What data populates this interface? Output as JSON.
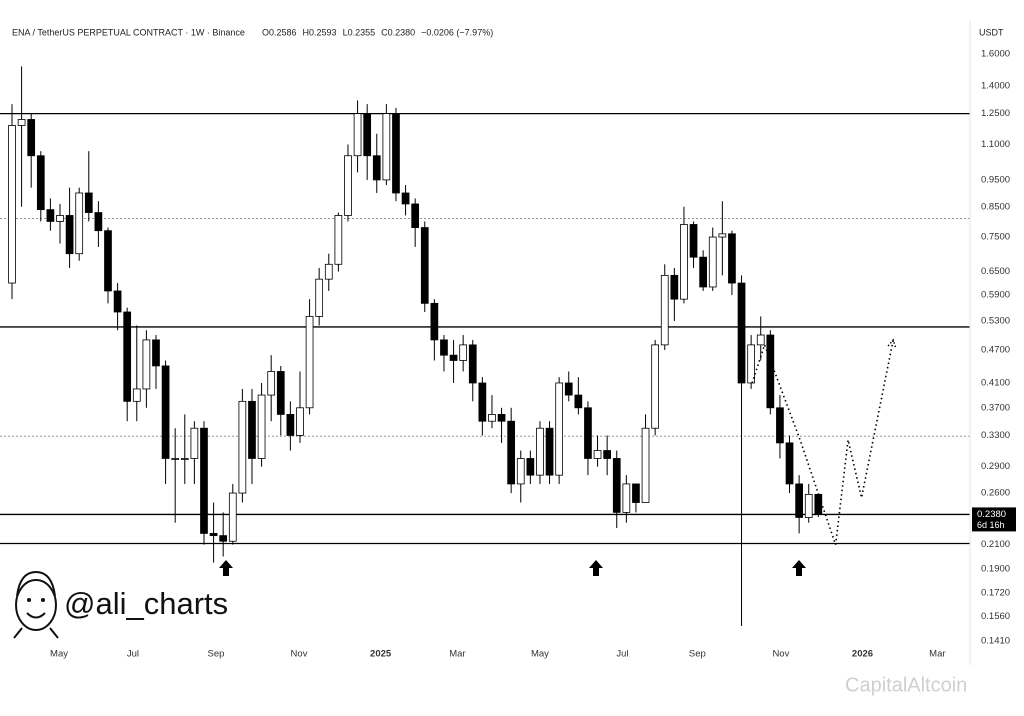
{
  "chart_data": {
    "type": "candlestick",
    "title": "ENA / TetherUS PERPETUAL CONTRACT · 1W · Binance",
    "header_values": [
      "O0.2586",
      "H0.2593",
      "L0.2355",
      "C0.2380",
      "−0.0206 (−7.97%)"
    ],
    "y_axis_label": "USDT",
    "log_scale": true,
    "grid": false,
    "up_color": "#ffffff",
    "down_color": "#000000",
    "open": [
      0.62,
      1.19,
      1.22,
      1.05,
      0.84,
      0.8,
      0.82,
      0.7,
      0.9,
      0.83,
      0.77,
      0.6,
      0.55,
      0.38,
      0.4,
      0.49,
      0.44,
      0.3,
      0.3,
      0.3,
      0.34,
      0.22,
      0.218,
      0.213,
      0.26,
      0.38,
      0.3,
      0.39,
      0.43,
      0.36,
      0.33,
      0.37,
      0.54,
      0.63,
      0.67,
      0.82,
      1.05,
      1.25,
      1.05,
      0.95,
      1.25,
      0.9,
      0.86,
      0.78,
      0.57,
      0.49,
      0.46,
      0.45,
      0.48,
      0.41,
      0.35,
      0.36,
      0.35,
      0.27,
      0.3,
      0.28,
      0.34,
      0.28,
      0.41,
      0.39,
      0.37,
      0.3,
      0.31,
      0.3,
      0.24,
      0.27,
      0.25,
      0.34,
      0.48,
      0.64,
      0.58,
      0.79,
      0.69,
      0.61,
      0.75,
      0.76,
      0.62,
      0.41,
      0.48,
      0.5,
      0.37,
      0.32,
      0.27,
      0.235,
      0.2586
    ],
    "high": [
      1.3,
      1.52,
      1.25,
      1.07,
      0.88,
      0.86,
      0.92,
      0.92,
      1.07,
      0.87,
      0.78,
      0.62,
      0.56,
      0.52,
      0.51,
      0.5,
      0.45,
      0.34,
      0.36,
      0.35,
      0.35,
      0.25,
      0.24,
      0.27,
      0.4,
      0.4,
      0.41,
      0.46,
      0.44,
      0.38,
      0.43,
      0.58,
      0.66,
      0.7,
      0.83,
      1.1,
      1.32,
      1.3,
      1.15,
      1.3,
      1.28,
      0.93,
      0.88,
      0.8,
      0.58,
      0.5,
      0.49,
      0.5,
      0.49,
      0.42,
      0.39,
      0.37,
      0.37,
      0.31,
      0.31,
      0.35,
      0.35,
      0.42,
      0.43,
      0.42,
      0.38,
      0.33,
      0.33,
      0.31,
      0.28,
      0.27,
      0.36,
      0.49,
      0.67,
      0.66,
      0.85,
      0.8,
      0.71,
      0.78,
      0.87,
      0.77,
      0.64,
      0.5,
      0.54,
      0.51,
      0.39,
      0.33,
      0.28,
      0.27,
      0.2593
    ],
    "low": [
      0.58,
      0.85,
      0.92,
      0.8,
      0.77,
      0.73,
      0.66,
      0.68,
      0.8,
      0.72,
      0.57,
      0.51,
      0.35,
      0.35,
      0.37,
      0.4,
      0.27,
      0.23,
      0.27,
      0.27,
      0.21,
      0.195,
      0.2,
      0.21,
      0.25,
      0.27,
      0.29,
      0.35,
      0.33,
      0.31,
      0.32,
      0.36,
      0.52,
      0.6,
      0.65,
      0.8,
      0.98,
      0.95,
      0.9,
      0.93,
      0.87,
      0.82,
      0.72,
      0.55,
      0.45,
      0.43,
      0.41,
      0.43,
      0.38,
      0.33,
      0.34,
      0.32,
      0.26,
      0.25,
      0.27,
      0.27,
      0.27,
      0.27,
      0.38,
      0.36,
      0.28,
      0.29,
      0.28,
      0.225,
      0.23,
      0.24,
      0.25,
      0.33,
      0.47,
      0.53,
      0.57,
      0.66,
      0.6,
      0.6,
      0.64,
      0.59,
      0.15,
      0.4,
      0.45,
      0.36,
      0.3,
      0.26,
      0.22,
      0.23,
      0.2355
    ],
    "close": [
      1.19,
      1.22,
      1.05,
      0.84,
      0.8,
      0.82,
      0.7,
      0.9,
      0.83,
      0.77,
      0.6,
      0.55,
      0.38,
      0.4,
      0.49,
      0.44,
      0.3,
      0.3,
      0.3,
      0.34,
      0.22,
      0.218,
      0.213,
      0.26,
      0.38,
      0.3,
      0.39,
      0.43,
      0.36,
      0.33,
      0.37,
      0.54,
      0.63,
      0.67,
      0.82,
      1.05,
      1.25,
      1.05,
      0.95,
      1.25,
      0.9,
      0.86,
      0.78,
      0.57,
      0.49,
      0.46,
      0.45,
      0.48,
      0.41,
      0.35,
      0.36,
      0.35,
      0.27,
      0.3,
      0.28,
      0.34,
      0.28,
      0.41,
      0.39,
      0.37,
      0.3,
      0.31,
      0.3,
      0.24,
      0.27,
      0.25,
      0.34,
      0.48,
      0.64,
      0.58,
      0.79,
      0.69,
      0.61,
      0.75,
      0.76,
      0.62,
      0.41,
      0.48,
      0.5,
      0.37,
      0.32,
      0.27,
      0.235,
      0.2586,
      0.238
    ],
    "xlim": [
      -1.25,
      99.8
    ],
    "xticks": [
      {
        "value": 4.9,
        "label": "May"
      },
      {
        "value": 12.6,
        "label": "Jul"
      },
      {
        "value": 21.25,
        "label": "Sep"
      },
      {
        "value": 29.9,
        "label": "Nov"
      },
      {
        "value": 38.4,
        "label": "2025"
      },
      {
        "value": 46.4,
        "label": "Mar"
      },
      {
        "value": 55,
        "label": "May"
      },
      {
        "value": 63.6,
        "label": "Jul"
      },
      {
        "value": 71.4,
        "label": "Sep"
      },
      {
        "value": 80.1,
        "label": "Nov"
      },
      {
        "value": 88.6,
        "label": "2026"
      },
      {
        "value": 96.4,
        "label": "Mar"
      }
    ],
    "ylim": [
      0.1303,
      1.695
    ],
    "yticks": [
      {
        "value": 1.6,
        "label": "1.6000"
      },
      {
        "value": 1.4,
        "label": "1.4000"
      },
      {
        "value": 1.25,
        "label": "1.2500"
      },
      {
        "value": 1.1,
        "label": "1.1000"
      },
      {
        "value": 0.95,
        "label": "0.9500"
      },
      {
        "value": 0.85,
        "label": "0.8500"
      },
      {
        "value": 0.75,
        "label": "0.7500"
      },
      {
        "value": 0.65,
        "label": "0.6500"
      },
      {
        "value": 0.59,
        "label": "0.5900"
      },
      {
        "value": 0.53,
        "label": "0.5300"
      },
      {
        "value": 0.47,
        "label": "0.4700"
      },
      {
        "value": 0.41,
        "label": "0.4100"
      },
      {
        "value": 0.37,
        "label": "0.3700"
      },
      {
        "value": 0.33,
        "label": "0.3300"
      },
      {
        "value": 0.29,
        "label": "0.2900"
      },
      {
        "value": 0.26,
        "label": "0.2600"
      },
      {
        "value": 0.21,
        "label": "0.2100"
      },
      {
        "value": 0.19,
        "label": "0.1900"
      },
      {
        "value": 0.172,
        "label": "0.1720"
      },
      {
        "value": 0.156,
        "label": "0.1560"
      },
      {
        "value": 0.141,
        "label": "0.1410"
      }
    ],
    "current_price": {
      "value": 0.238,
      "label": "0.2380"
    },
    "countdown": "6d 16h",
    "levels": [
      {
        "value": 1.25,
        "style": "solid"
      },
      {
        "value": 0.81,
        "style": "dashed"
      },
      {
        "value": 0.517,
        "style": "solid"
      },
      {
        "value": 0.329,
        "style": "dashed"
      },
      {
        "value": 0.238,
        "style": "solid"
      },
      {
        "value": 0.211,
        "style": "solid"
      }
    ],
    "projection": {
      "x": [
        77.1,
        78.4,
        82.1,
        85.8,
        87.1,
        88.5,
        91.8
      ],
      "values": [
        0.41,
        0.48,
        0.324,
        0.21,
        0.324,
        0.255,
        0.49
      ]
    },
    "author": "@ali_charts",
    "watermark": "CapitalAltcoin"
  }
}
